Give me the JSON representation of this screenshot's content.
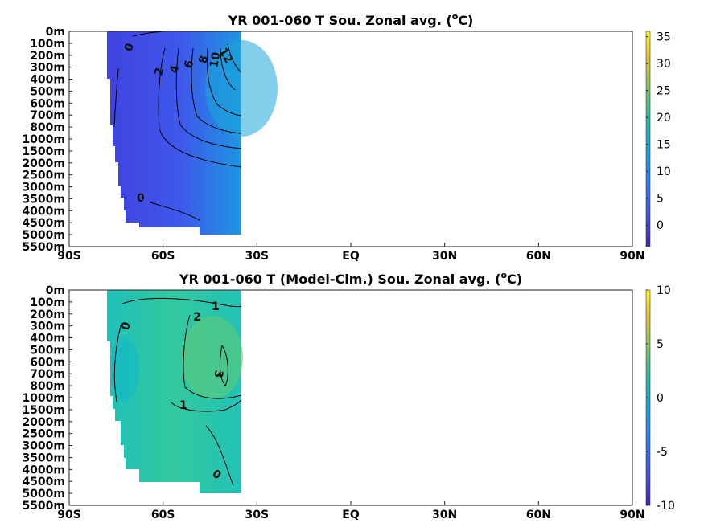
{
  "chart_data": [
    {
      "type": "heatmap",
      "title_main": "YR 001-060 T Sou. Zonal avg. (",
      "title_sup": "o",
      "title_end": "C)",
      "x_ticks": [
        "90S",
        "60S",
        "30S",
        "EQ",
        "30N",
        "60N",
        "90N"
      ],
      "y_ticks": [
        "0m",
        "100m",
        "200m",
        "300m",
        "400m",
        "500m",
        "600m",
        "700m",
        "800m",
        "1000m",
        "1500m",
        "2000m",
        "2500m",
        "3000m",
        "3500m",
        "4000m",
        "4500m",
        "5000m",
        "5500m"
      ],
      "colorbar_ticks": [
        "35",
        "30",
        "25",
        "20",
        "15",
        "10",
        "5",
        "0"
      ],
      "colorbar_range": [
        -4,
        36
      ],
      "contour_labels": [
        "0",
        "2",
        "4",
        "6",
        "8",
        "10",
        "12",
        "0"
      ],
      "grid": false,
      "colors": {
        "low": "#3e26a8",
        "high": "#f9fb0e"
      }
    },
    {
      "type": "heatmap",
      "title_main": "YR 001-060 T (Model-Clm.) Sou. Zonal avg. (",
      "title_sup": "o",
      "title_end": "C)",
      "x_ticks": [
        "90S",
        "60S",
        "30S",
        "EQ",
        "30N",
        "60N",
        "90N"
      ],
      "y_ticks": [
        "0m",
        "100m",
        "200m",
        "300m",
        "400m",
        "500m",
        "600m",
        "700m",
        "800m",
        "1000m",
        "1500m",
        "2000m",
        "2500m",
        "3000m",
        "3500m",
        "4000m",
        "4500m",
        "5000m",
        "5500m"
      ],
      "colorbar_ticks": [
        "10",
        "5",
        "0",
        "-5",
        "-10"
      ],
      "colorbar_range": [
        -10,
        10
      ],
      "contour_labels": [
        "1",
        "2",
        "0",
        "3",
        "1",
        "0"
      ],
      "grid": false,
      "colors": {
        "low": "#3e26a8",
        "high": "#f9fb0e"
      }
    }
  ]
}
